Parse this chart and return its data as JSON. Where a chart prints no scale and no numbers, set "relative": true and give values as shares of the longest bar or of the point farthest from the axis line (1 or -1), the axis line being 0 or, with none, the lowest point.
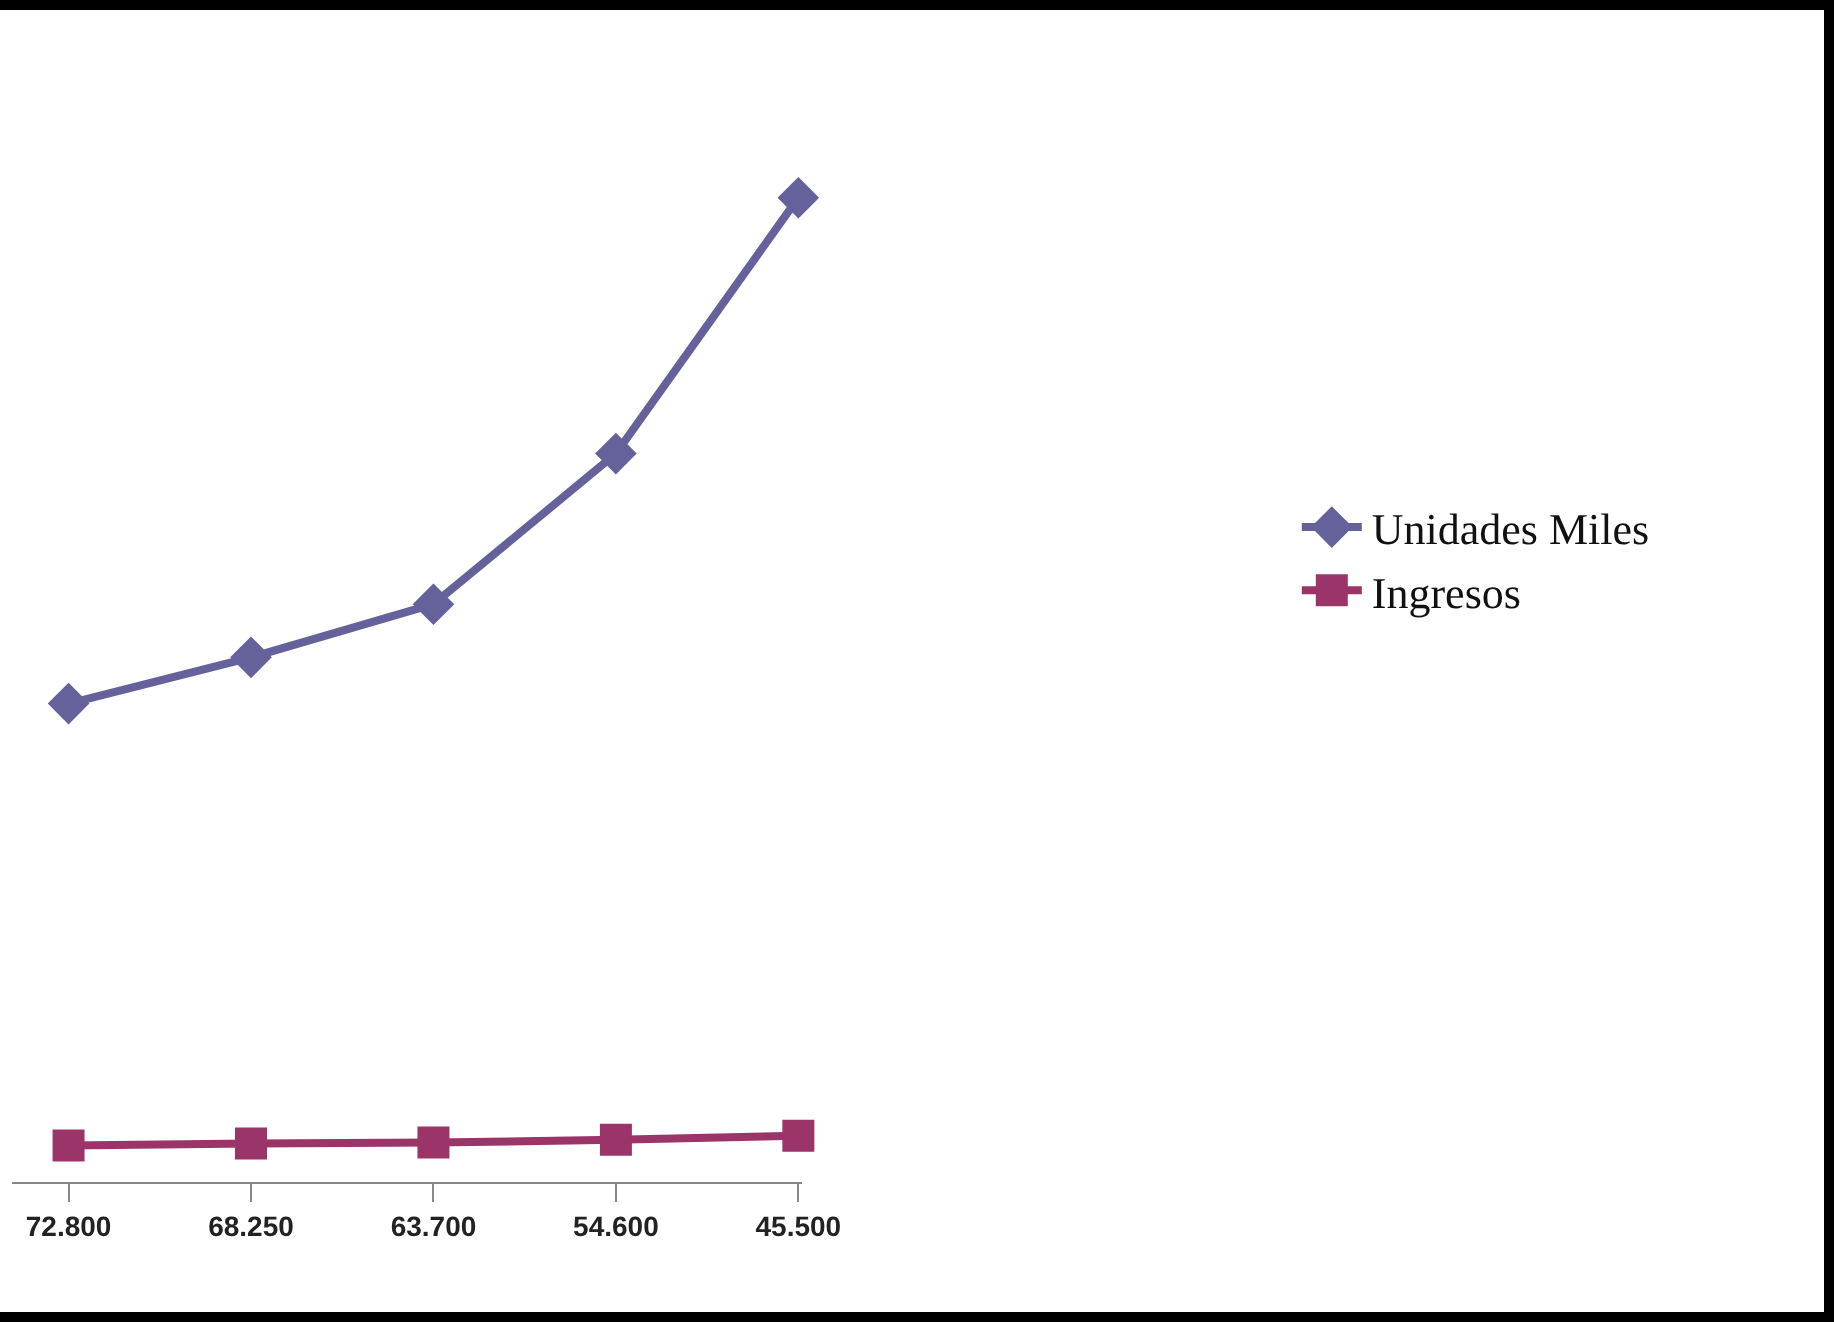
{
  "chart_data": {
    "type": "line",
    "relative": true,
    "categories": [
      "72.800",
      "68.250",
      "63.700",
      "54.600",
      "45.500"
    ],
    "series": [
      {
        "name": "Unidades Miles",
        "color": "#65619b",
        "marker": "diamond",
        "values": [
          0.486,
          0.533,
          0.587,
          0.74,
          1
        ]
      },
      {
        "name": "Ingresos",
        "color": "#9b3468",
        "marker": "square",
        "values": [
          0.037,
          0.039,
          0.04,
          0.043,
          0.047
        ]
      }
    ],
    "grid": false,
    "legend": "right",
    "tick_labels": "x"
  }
}
